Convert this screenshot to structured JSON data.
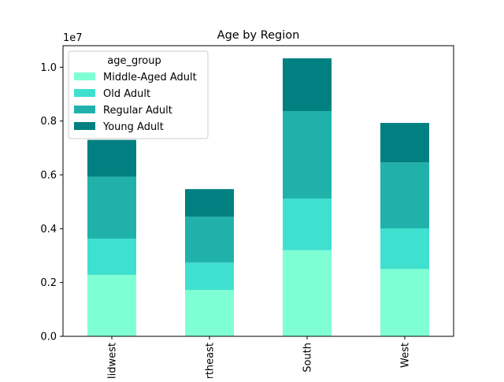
{
  "chart_data": {
    "type": "bar",
    "stacked": true,
    "title": "Age by Region",
    "xlabel": "",
    "ylabel": "",
    "offset_text": "1e7",
    "categories": [
      "Midwest",
      "Northeast",
      "South",
      "West"
    ],
    "series": [
      {
        "name": "Middle-Aged Adult",
        "color": "#7fffd4",
        "values": [
          2280000,
          1720000,
          3200000,
          2500000
        ]
      },
      {
        "name": "Old Adult",
        "color": "#40e0d0",
        "values": [
          1350000,
          1020000,
          1920000,
          1510000
        ]
      },
      {
        "name": "Regular Adult",
        "color": "#20b2aa",
        "values": [
          2300000,
          1700000,
          3250000,
          2450000
        ]
      },
      {
        "name": "Young Adult",
        "color": "#008080",
        "values": [
          1370000,
          1030000,
          1960000,
          1470000
        ]
      }
    ],
    "ylim": [
      0,
      10800000
    ],
    "yticks": [
      0,
      2000000,
      4000000,
      6000000,
      8000000,
      10000000
    ],
    "ytick_labels": [
      "0.0",
      "0.2",
      "0.4",
      "0.6",
      "0.8",
      "1.0"
    ],
    "legend": {
      "title": "age_group",
      "position": "top-left"
    },
    "grid": false
  }
}
